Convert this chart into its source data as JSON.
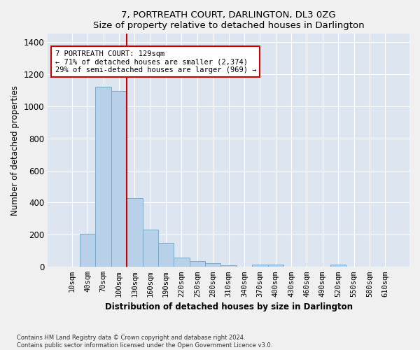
{
  "title": "7, PORTREATH COURT, DARLINGTON, DL3 0ZG",
  "subtitle": "Size of property relative to detached houses in Darlington",
  "xlabel": "Distribution of detached houses by size in Darlington",
  "ylabel": "Number of detached properties",
  "footer_line1": "Contains HM Land Registry data © Crown copyright and database right 2024.",
  "footer_line2": "Contains public sector information licensed under the Open Government Licence v3.0.",
  "bar_labels": [
    "10sqm",
    "40sqm",
    "70sqm",
    "100sqm",
    "130sqm",
    "160sqm",
    "190sqm",
    "220sqm",
    "250sqm",
    "280sqm",
    "310sqm",
    "340sqm",
    "370sqm",
    "400sqm",
    "430sqm",
    "460sqm",
    "490sqm",
    "520sqm",
    "550sqm",
    "580sqm",
    "610sqm"
  ],
  "bar_values": [
    0,
    207,
    1120,
    1095,
    430,
    232,
    148,
    57,
    38,
    25,
    8,
    0,
    15,
    15,
    0,
    0,
    0,
    13,
    0,
    0,
    0
  ],
  "bar_color": "#b8d0e8",
  "bar_edge_color": "#7aaac8",
  "background_color": "#dde6f0",
  "grid_color": "#ffffff",
  "vline_color": "#cc0000",
  "vline_pos": 3.5,
  "annotation_line1": "7 PORTREATH COURT: 129sqm",
  "annotation_line2": "← 71% of detached houses are smaller (2,374)",
  "annotation_line3": "29% of semi-detached houses are larger (969) →",
  "annotation_box_color": "#ffffff",
  "annotation_box_edge_color": "#cc0000",
  "fig_bg_color": "#f0f0f0",
  "ylim": [
    0,
    1450
  ],
  "yticks": [
    0,
    200,
    400,
    600,
    800,
    1000,
    1200,
    1400
  ]
}
